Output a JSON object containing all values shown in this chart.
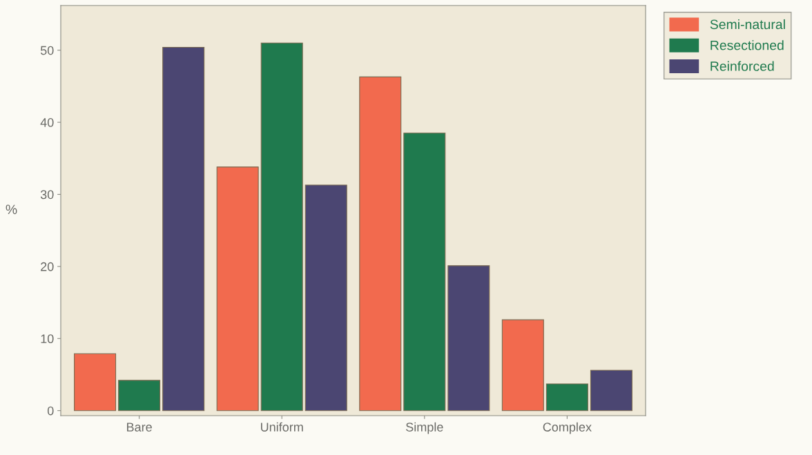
{
  "chart_data": {
    "type": "bar",
    "ylabel": "%",
    "categories": [
      "Bare",
      "Uniform",
      "Simple",
      "Complex"
    ],
    "series": [
      {
        "name": "Semi-natural",
        "color": "#f26a4e",
        "values": [
          7.9,
          33.8,
          46.3,
          12.6
        ]
      },
      {
        "name": "Resectioned",
        "color": "#1f7a4e",
        "values": [
          4.2,
          51.0,
          38.5,
          3.7
        ]
      },
      {
        "name": "Reinforced",
        "color": "#4b4672",
        "values": [
          50.4,
          31.3,
          20.1,
          5.6
        ]
      }
    ],
    "ylim": [
      -0.7,
      56.2
    ],
    "yticks": [
      0,
      10,
      20,
      30,
      40,
      50
    ],
    "grid": false,
    "legend": "top right"
  }
}
